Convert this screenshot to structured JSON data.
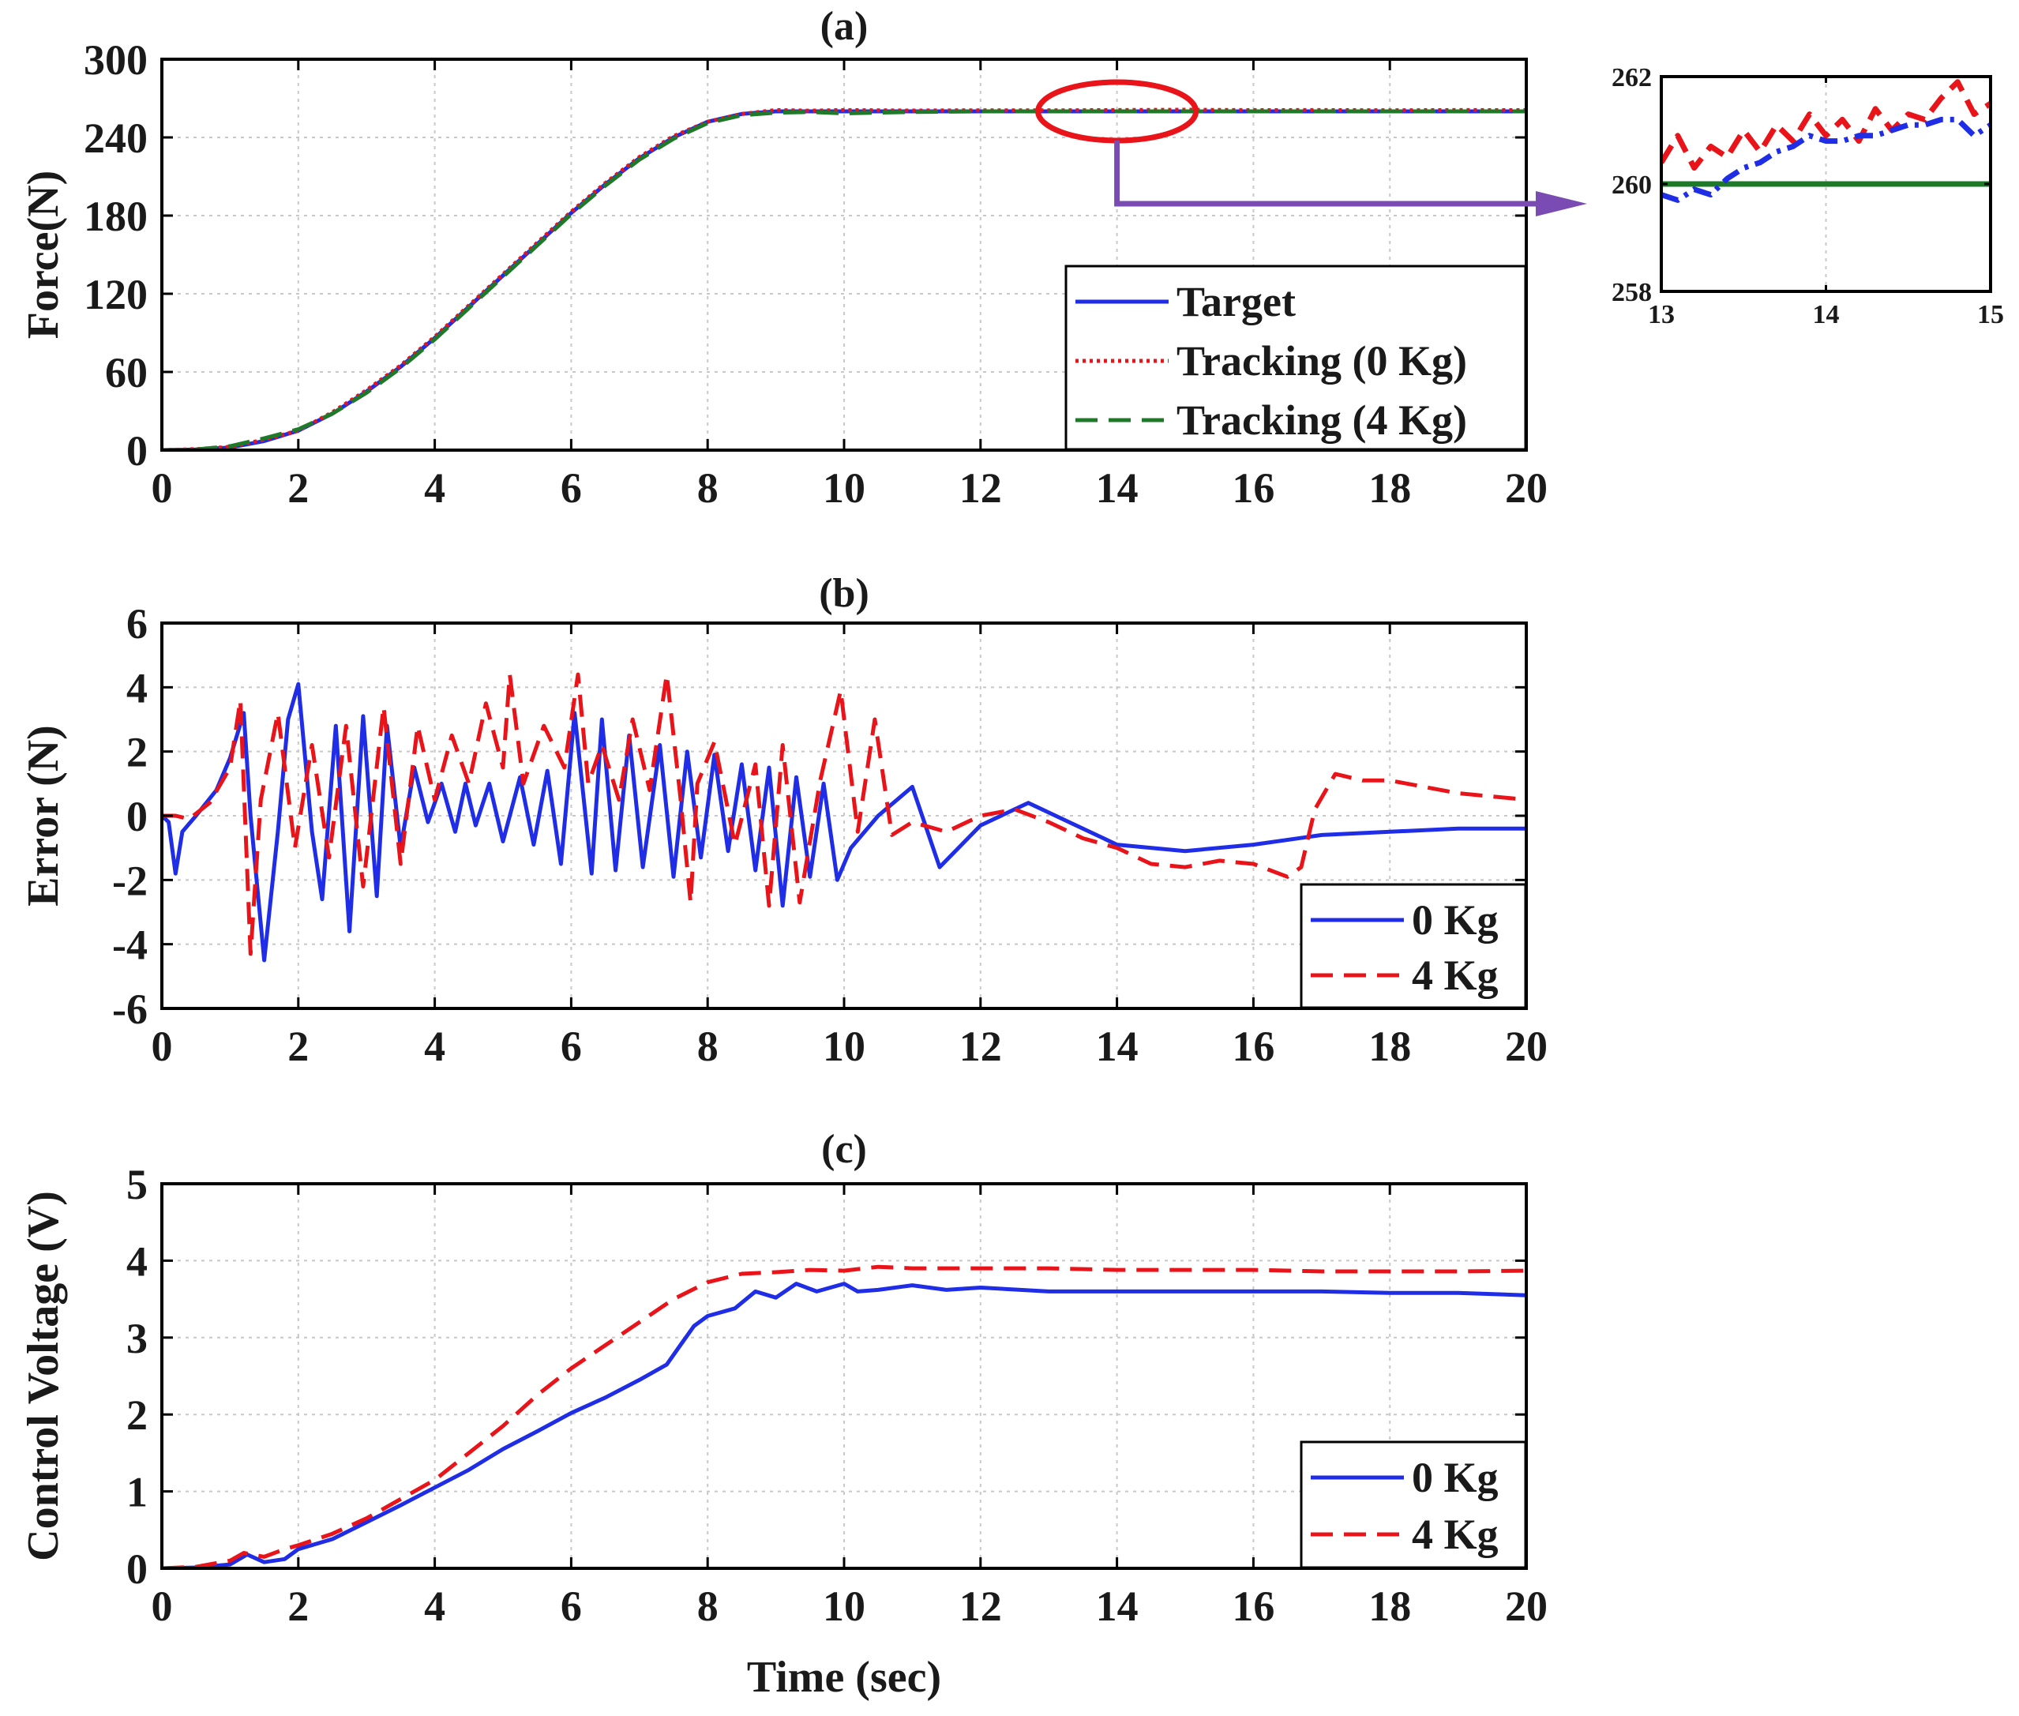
{
  "colors": {
    "blue": "#1f2ee6",
    "red": "#e8141a",
    "green": "#1e7a28",
    "purple": "#7a4bb3",
    "axis": "#000000",
    "grid": "#c8c8c8"
  },
  "chart_data": [
    {
      "id": "a",
      "type": "line",
      "title": "(a)",
      "xlabel": "",
      "ylabel": "Force(N)",
      "xlim": [
        0,
        20
      ],
      "ylim": [
        0,
        300
      ],
      "xticks": [
        0,
        2,
        4,
        6,
        8,
        10,
        12,
        14,
        16,
        18,
        20
      ],
      "yticks": [
        0,
        60,
        120,
        180,
        240,
        300
      ],
      "grid": true,
      "legend_position": "bottom-right",
      "series": [
        {
          "name": "Target",
          "color": "#1f2ee6",
          "dash": "solid",
          "x": [
            0,
            0.5,
            1,
            1.5,
            2,
            2.5,
            3,
            3.5,
            4,
            4.5,
            5,
            5.5,
            6,
            6.5,
            7,
            7.5,
            8,
            8.5,
            9,
            9.5,
            10,
            11,
            12,
            13,
            14,
            15,
            16,
            17,
            18,
            19,
            20
          ],
          "values": [
            0,
            0.5,
            2,
            7,
            15,
            28,
            45,
            64,
            86,
            110,
            134,
            158,
            182,
            204,
            224,
            240,
            252,
            258,
            260,
            260,
            260,
            260,
            260,
            260,
            260,
            260,
            260,
            260,
            260,
            260,
            260
          ]
        },
        {
          "name": "Tracking (0 Kg)",
          "color": "#e8141a",
          "dash": "dotted",
          "x": [
            0,
            0.5,
            1,
            1.5,
            2,
            2.5,
            3,
            3.5,
            4,
            4.5,
            5,
            5.5,
            6,
            6.5,
            7,
            7.5,
            8,
            8.5,
            9,
            9.5,
            10,
            11,
            12,
            13,
            14,
            15,
            16,
            17,
            18,
            19,
            20
          ],
          "values": [
            0,
            0.8,
            2.5,
            8,
            15,
            29,
            46,
            65,
            87,
            111,
            135,
            159,
            183,
            205,
            225,
            241,
            252,
            258,
            261,
            260.5,
            261,
            260.6,
            260.8,
            260.7,
            261,
            261.2,
            260.9,
            261,
            260.8,
            261,
            260.9
          ]
        },
        {
          "name": "Tracking (4 Kg)",
          "color": "#1e7a28",
          "dash": "dashed",
          "x": [
            0,
            0.5,
            1,
            1.5,
            2,
            2.5,
            3,
            3.5,
            4,
            4.5,
            5,
            5.5,
            6,
            6.5,
            7,
            7.5,
            8,
            8.5,
            9,
            9.5,
            10,
            11,
            12,
            13,
            14,
            15,
            16,
            17,
            18,
            19,
            20
          ],
          "values": [
            0,
            0.5,
            3,
            9,
            16,
            28,
            44,
            63,
            85,
            109,
            133,
            157,
            181,
            203,
            223,
            239,
            251,
            257,
            259,
            259.5,
            258.5,
            259.5,
            260,
            260,
            260,
            260,
            260,
            260,
            260,
            260,
            260
          ]
        }
      ]
    },
    {
      "id": "a-inset",
      "type": "line",
      "title": "",
      "xlim": [
        13,
        15
      ],
      "ylim": [
        258,
        262
      ],
      "xticks": [
        13,
        14,
        15
      ],
      "yticks": [
        258,
        260,
        262
      ],
      "grid": true,
      "series": [
        {
          "name": "Target",
          "color": "#1e7a28",
          "dash": "solid",
          "x": [
            13,
            15
          ],
          "values": [
            260,
            260
          ]
        },
        {
          "name": "Tracking (0 Kg)",
          "color": "#e8141a",
          "dash": "dashed",
          "x": [
            13,
            13.1,
            13.2,
            13.3,
            13.4,
            13.5,
            13.6,
            13.7,
            13.8,
            13.9,
            14,
            14.1,
            14.2,
            14.3,
            14.4,
            14.5,
            14.6,
            14.7,
            14.8,
            14.9,
            15
          ],
          "values": [
            260.4,
            260.9,
            260.3,
            260.7,
            260.5,
            261,
            260.6,
            261.1,
            260.8,
            261.3,
            260.9,
            261.2,
            260.8,
            261.4,
            261,
            261.3,
            261.2,
            261.6,
            261.9,
            261.3,
            261.5
          ]
        },
        {
          "name": "Tracking (4 Kg)",
          "color": "#1f2ee6",
          "dash": "dashdot",
          "x": [
            13,
            13.1,
            13.2,
            13.3,
            13.4,
            13.5,
            13.6,
            13.7,
            13.8,
            13.9,
            14,
            14.1,
            14.2,
            14.3,
            14.4,
            14.5,
            14.6,
            14.7,
            14.8,
            14.9,
            15
          ],
          "values": [
            259.8,
            259.7,
            259.9,
            259.8,
            260.1,
            260.3,
            260.4,
            260.6,
            260.7,
            260.9,
            260.8,
            260.8,
            260.9,
            260.9,
            261,
            261.1,
            261.1,
            261.2,
            261.2,
            260.9,
            261.1
          ]
        }
      ]
    },
    {
      "id": "b",
      "type": "line",
      "title": "(b)",
      "xlabel": "",
      "ylabel": "Error (N)",
      "xlim": [
        0,
        20
      ],
      "ylim": [
        -6,
        6
      ],
      "xticks": [
        0,
        2,
        4,
        6,
        8,
        10,
        12,
        14,
        16,
        18,
        20
      ],
      "yticks": [
        -6,
        -4,
        -2,
        0,
        2,
        4,
        6
      ],
      "grid": true,
      "legend_position": "bottom-right",
      "series": [
        {
          "name": "0 Kg",
          "color": "#1f2ee6",
          "dash": "solid",
          "x": [
            0,
            0.1,
            0.2,
            0.3,
            0.5,
            0.8,
            1.0,
            1.2,
            1.3,
            1.5,
            1.7,
            1.85,
            2.0,
            2.2,
            2.35,
            2.55,
            2.75,
            2.95,
            3.15,
            3.3,
            3.5,
            3.7,
            3.9,
            4.1,
            4.3,
            4.45,
            4.6,
            4.8,
            5.0,
            5.25,
            5.45,
            5.65,
            5.85,
            6.05,
            6.3,
            6.45,
            6.65,
            6.85,
            7.05,
            7.3,
            7.5,
            7.7,
            7.9,
            8.1,
            8.3,
            8.5,
            8.7,
            8.9,
            9.1,
            9.3,
            9.5,
            9.7,
            9.9,
            10.1,
            10.5,
            11.0,
            11.4,
            12.0,
            12.7,
            13.3,
            14.0,
            15.0,
            16.0,
            17.0,
            18.0,
            19.0,
            20.0
          ],
          "values": [
            0,
            -0.2,
            -1.8,
            -0.5,
            0,
            0.8,
            1.8,
            3.2,
            0,
            -4.5,
            -0.5,
            3.0,
            4.1,
            -0.5,
            -2.6,
            2.8,
            -3.6,
            3.1,
            -2.5,
            2.8,
            -1.0,
            1.5,
            -0.2,
            1.0,
            -0.5,
            1.0,
            -0.3,
            1.0,
            -0.8,
            1.2,
            -0.9,
            1.4,
            -1.5,
            3.2,
            -1.8,
            3.0,
            -1.7,
            2.5,
            -1.6,
            2.2,
            -1.9,
            2.0,
            -1.3,
            1.9,
            -1.1,
            1.6,
            -1.7,
            1.5,
            -2.8,
            1.2,
            -1.9,
            1.0,
            -2.0,
            -1.0,
            0.0,
            0.9,
            -1.6,
            -0.3,
            0.4,
            -0.2,
            -0.9,
            -1.1,
            -0.9,
            -0.6,
            -0.5,
            -0.4,
            -0.4
          ]
        },
        {
          "name": "4 Kg",
          "color": "#e8141a",
          "dash": "dashed",
          "x": [
            0,
            0.2,
            0.4,
            0.7,
            1.0,
            1.15,
            1.3,
            1.45,
            1.7,
            1.95,
            2.2,
            2.45,
            2.7,
            2.95,
            3.25,
            3.5,
            3.75,
            4.0,
            4.25,
            4.5,
            4.75,
            5.0,
            5.1,
            5.3,
            5.6,
            5.9,
            6.1,
            6.25,
            6.45,
            6.7,
            6.9,
            7.15,
            7.4,
            7.6,
            7.75,
            7.85,
            8.1,
            8.4,
            8.7,
            8.9,
            9.1,
            9.35,
            9.65,
            9.95,
            10.2,
            10.45,
            10.7,
            11.0,
            11.5,
            12.0,
            12.5,
            13.0,
            13.5,
            14.0,
            14.5,
            15.0,
            15.5,
            16.0,
            16.5,
            16.7,
            16.9,
            17.2,
            17.6,
            18.0,
            18.5,
            19.0,
            19.5,
            20.0
          ],
          "values": [
            0,
            0,
            -0.1,
            0.4,
            1.5,
            3.6,
            -4.3,
            0.5,
            3.2,
            -1.0,
            2.2,
            -1.3,
            2.8,
            -2.2,
            3.4,
            -1.5,
            2.8,
            0.5,
            2.5,
            1.0,
            3.5,
            1.5,
            4.4,
            1.0,
            2.8,
            1.5,
            4.4,
            1.0,
            2.2,
            0.5,
            3.0,
            0.8,
            4.4,
            0.6,
            -2.7,
            1.0,
            2.3,
            -0.9,
            1.6,
            -2.8,
            2.2,
            -2.7,
            1.1,
            3.9,
            -0.5,
            3.0,
            -0.6,
            -0.2,
            -0.5,
            0.0,
            0.2,
            -0.2,
            -0.7,
            -1.0,
            -1.5,
            -1.6,
            -1.4,
            -1.5,
            -1.9,
            -1.6,
            0.2,
            1.3,
            1.1,
            1.1,
            0.9,
            0.7,
            0.6,
            0.5
          ]
        }
      ]
    },
    {
      "id": "c",
      "type": "line",
      "title": "(c)",
      "xlabel": "Time (sec)",
      "ylabel": "Control Voltage (V)",
      "xlim": [
        0,
        20
      ],
      "ylim": [
        0,
        5
      ],
      "xticks": [
        0,
        2,
        4,
        6,
        8,
        10,
        12,
        14,
        16,
        18,
        20
      ],
      "yticks": [
        0,
        1,
        2,
        3,
        4,
        5
      ],
      "grid": true,
      "legend_position": "bottom-right",
      "series": [
        {
          "name": "0 Kg",
          "color": "#1f2ee6",
          "dash": "solid",
          "x": [
            0,
            0.5,
            1.0,
            1.25,
            1.5,
            1.8,
            2.0,
            2.5,
            3.0,
            3.5,
            4.0,
            4.5,
            5.0,
            5.5,
            6.0,
            6.5,
            7.0,
            7.4,
            7.6,
            7.8,
            8.0,
            8.4,
            8.7,
            9.0,
            9.3,
            9.6,
            10.0,
            10.2,
            10.5,
            11.0,
            11.5,
            12.0,
            13.0,
            14.0,
            15.0,
            16.0,
            17.0,
            18.0,
            19.0,
            20.0
          ],
          "values": [
            0,
            0.01,
            0.05,
            0.18,
            0.08,
            0.12,
            0.25,
            0.38,
            0.6,
            0.82,
            1.05,
            1.28,
            1.55,
            1.78,
            2.02,
            2.22,
            2.45,
            2.65,
            2.9,
            3.15,
            3.28,
            3.38,
            3.6,
            3.52,
            3.7,
            3.6,
            3.7,
            3.6,
            3.62,
            3.68,
            3.62,
            3.65,
            3.6,
            3.6,
            3.6,
            3.6,
            3.6,
            3.58,
            3.58,
            3.55
          ]
        },
        {
          "name": "4 Kg",
          "color": "#e8141a",
          "dash": "dashed",
          "x": [
            0,
            0.5,
            1.0,
            1.2,
            1.5,
            1.8,
            2.0,
            2.5,
            3.0,
            3.5,
            4.0,
            4.5,
            5.0,
            5.5,
            6.0,
            6.5,
            7.0,
            7.5,
            8.0,
            8.5,
            9.0,
            9.5,
            10.0,
            10.5,
            11.0,
            12.0,
            13.0,
            14.0,
            15.0,
            16.0,
            17.0,
            18.0,
            19.0,
            20.0
          ],
          "values": [
            0,
            0.02,
            0.1,
            0.2,
            0.15,
            0.25,
            0.3,
            0.45,
            0.65,
            0.9,
            1.15,
            1.5,
            1.85,
            2.25,
            2.6,
            2.9,
            3.2,
            3.5,
            3.72,
            3.83,
            3.85,
            3.88,
            3.87,
            3.92,
            3.9,
            3.9,
            3.9,
            3.88,
            3.88,
            3.88,
            3.86,
            3.86,
            3.86,
            3.87
          ]
        }
      ]
    }
  ]
}
